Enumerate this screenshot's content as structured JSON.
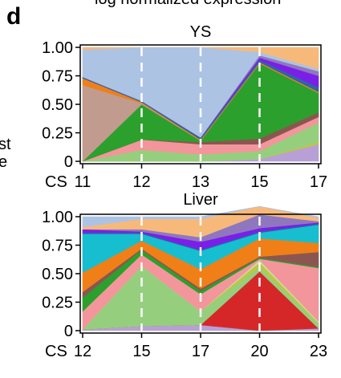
{
  "figure": {
    "panel_label": "d",
    "cut_off_top_text": "log normalized expression",
    "cut_off_side_text": [
      "st",
      "e"
    ]
  },
  "chart_data": [
    {
      "type": "area",
      "title": "YS",
      "x_axis_prefix": "CS",
      "x": [
        11,
        12,
        13,
        15,
        17
      ],
      "ylim": [
        0,
        1
      ],
      "yticks": [
        "0",
        "0.25",
        "0.50",
        "0.75",
        "1.00"
      ],
      "vertical_guides": [
        12,
        13,
        15
      ],
      "stack_order": "bottom-to-top",
      "series": [
        {
          "color": "#b8a0d6",
          "values": [
            0.0,
            0.0,
            0.0,
            0.02,
            0.15
          ]
        },
        {
          "color": "#c4c43c",
          "values": [
            0.0,
            0.0,
            0.0,
            0.0,
            0.02
          ]
        },
        {
          "color": "#95cf7e",
          "values": [
            0.0,
            0.1,
            0.06,
            0.07,
            0.17
          ]
        },
        {
          "color": "#f2969b",
          "values": [
            0.0,
            0.09,
            0.09,
            0.06,
            0.05
          ]
        },
        {
          "color": "#8c5650",
          "values": [
            0.0,
            0.0,
            0.02,
            0.05,
            0.04
          ]
        },
        {
          "color": "#2ca02c",
          "values": [
            0.0,
            0.31,
            0.01,
            0.66,
            0.17
          ]
        },
        {
          "color": "#c19b8d",
          "values": [
            0.67,
            0.01,
            0.0,
            0.0,
            0.0
          ]
        },
        {
          "color": "#f07f18",
          "values": [
            0.06,
            0.01,
            0.01,
            0.01,
            0.01
          ]
        },
        {
          "color": "#2e64a8",
          "values": [
            0.01,
            0.01,
            0.02,
            0.02,
            0.04
          ]
        },
        {
          "color": "#7b1fe8",
          "values": [
            0.0,
            0.0,
            0.0,
            0.02,
            0.1
          ]
        },
        {
          "color": "#8f77bf",
          "values": [
            0.0,
            0.0,
            0.0,
            0.02,
            0.04
          ]
        },
        {
          "color": "#acc3e4",
          "values": [
            0.24,
            0.47,
            0.79,
            0.03,
            0.02
          ]
        },
        {
          "color": "#f7b97a",
          "values": [
            0.02,
            0.0,
            0.0,
            0.04,
            0.19
          ]
        }
      ]
    },
    {
      "type": "area",
      "title": "Liver",
      "x_axis_prefix": "CS",
      "x": [
        12,
        15,
        17,
        20,
        23
      ],
      "ylim": [
        0,
        1
      ],
      "yticks": [
        "0",
        "0.25",
        "0.50",
        "0.75",
        "1.00"
      ],
      "vertical_guides": [
        15,
        17,
        20
      ],
      "stack_order": "bottom-to-top",
      "series": [
        {
          "color": "#b8a0d6",
          "values": [
            0.01,
            0.04,
            0.05,
            0.0,
            0.02
          ]
        },
        {
          "color": "#d62728",
          "values": [
            0.0,
            0.0,
            0.0,
            0.52,
            0.0
          ]
        },
        {
          "color": "#95cf7e",
          "values": [
            0.0,
            0.53,
            0.12,
            0.04,
            0.04
          ]
        },
        {
          "color": "#c4c43c",
          "values": [
            0.0,
            0.0,
            0.0,
            0.04,
            0.01
          ]
        },
        {
          "color": "#c3e0ac",
          "values": [
            0.0,
            0.0,
            0.0,
            0.02,
            0.01
          ]
        },
        {
          "color": "#f2969b",
          "values": [
            0.16,
            0.1,
            0.15,
            0.01,
            0.47
          ]
        },
        {
          "color": "#2ca02c",
          "values": [
            0.12,
            0.04,
            0.03,
            0.01,
            0.01
          ]
        },
        {
          "color": "#8c5650",
          "values": [
            0.05,
            0.01,
            0.02,
            0.01,
            0.13
          ]
        },
        {
          "color": "#f07f18",
          "values": [
            0.17,
            0.07,
            0.17,
            0.16,
            0.08
          ]
        },
        {
          "color": "#17becf",
          "values": [
            0.34,
            0.06,
            0.16,
            0.05,
            0.16
          ]
        },
        {
          "color": "#2e64a8",
          "values": [
            0.01,
            0.01,
            0.01,
            0.01,
            0.01
          ]
        },
        {
          "color": "#7b1fe8",
          "values": [
            0.03,
            0.01,
            0.07,
            0.03,
            0.01
          ]
        },
        {
          "color": "#8f77bf",
          "values": [
            0.0,
            0.02,
            0.04,
            0.12,
            0.01
          ]
        },
        {
          "color": "#f7b97a",
          "values": [
            0.02,
            0.09,
            0.16,
            0.07,
            0.03
          ]
        },
        {
          "color": "#acc3e4",
          "values": [
            0.09,
            0.02,
            0.02,
            0.0,
            0.01
          ]
        }
      ]
    }
  ]
}
